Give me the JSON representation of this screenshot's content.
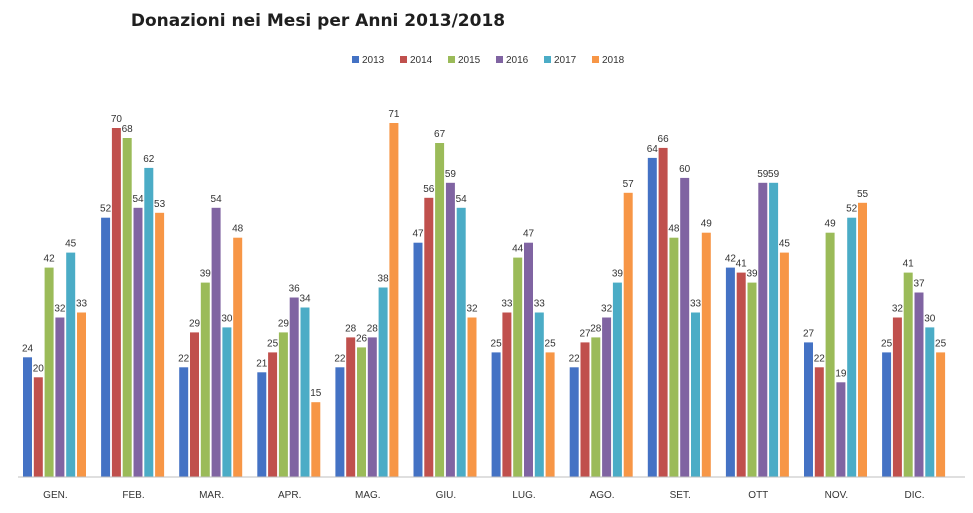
{
  "chart_data": {
    "type": "bar",
    "title": "Donazioni nei Mesi per Anni 2013/2018",
    "xlabel": "",
    "ylabel": "",
    "ylim": [
      0,
      72
    ],
    "grid": false,
    "legend_position": "top",
    "categories": [
      "GEN.",
      "FEB.",
      "MAR.",
      "APR.",
      "MAG.",
      "GIU.",
      "LUG.",
      "AGO.",
      "SET.",
      "OTT",
      "NOV.",
      "DIC."
    ],
    "series": [
      {
        "name": "2013",
        "color": "#4472c4",
        "values": [
          24,
          52,
          22,
          21,
          22,
          47,
          25,
          22,
          64,
          42,
          27,
          25
        ]
      },
      {
        "name": "2014",
        "color": "#c0504d",
        "values": [
          20,
          70,
          29,
          25,
          28,
          56,
          33,
          27,
          66,
          41,
          22,
          32
        ]
      },
      {
        "name": "2015",
        "color": "#9bbb59",
        "values": [
          42,
          68,
          39,
          29,
          26,
          67,
          44,
          28,
          48,
          39,
          49,
          41
        ]
      },
      {
        "name": "2016",
        "color": "#8064a2",
        "values": [
          32,
          54,
          54,
          36,
          28,
          59,
          47,
          32,
          60,
          59,
          19,
          37
        ]
      },
      {
        "name": "2017",
        "color": "#4bacc6",
        "values": [
          45,
          62,
          30,
          34,
          38,
          54,
          33,
          39,
          33,
          59,
          52,
          30
        ]
      },
      {
        "name": "2018",
        "color": "#f79646",
        "values": [
          33,
          53,
          48,
          15,
          71,
          32,
          25,
          57,
          49,
          45,
          55,
          25
        ]
      }
    ]
  }
}
